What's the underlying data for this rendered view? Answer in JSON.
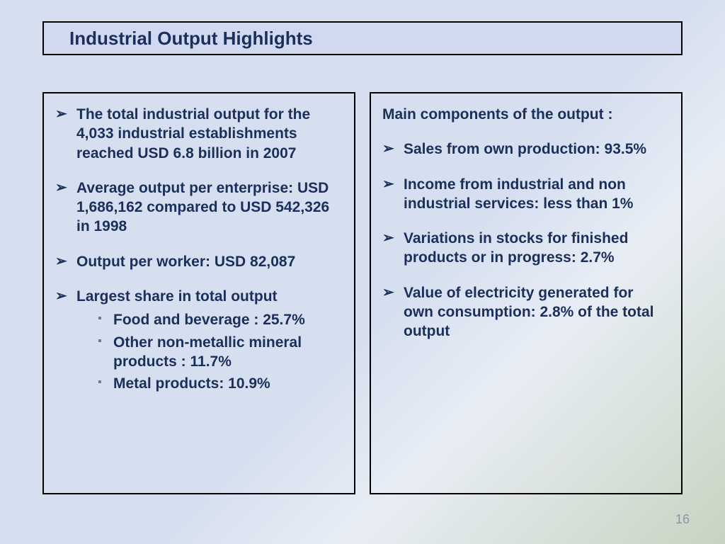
{
  "title": "Industrial Output  Highlights",
  "left_column": {
    "items": [
      "The total industrial output for the 4,033 industrial establishments reached USD 6.8 billion in 2007",
      "Average output per enterprise: USD 1,686,162 compared to USD 542,326 in 1998",
      "Output per worker: USD 82,087",
      "Largest share in total output"
    ],
    "sub_items": [
      "Food and beverage : 25.7%",
      "Other non-metallic mineral products : 11.7%",
      "Metal products: 10.9%"
    ]
  },
  "right_column": {
    "heading": "Main components of the output :",
    "items": [
      "Sales from own production: 93.5%",
      "Income from industrial and non industrial services: less than 1%",
      "Variations in stocks for finished products  or in progress: 2.7%",
      "Value of electricity generated for own consumption: 2.8% of the total output"
    ]
  },
  "page_number": "16",
  "colors": {
    "text": "#1a2f5a",
    "border": "#000000",
    "title_bg": "#d1d9f0",
    "page_num": "#8a94aa"
  }
}
